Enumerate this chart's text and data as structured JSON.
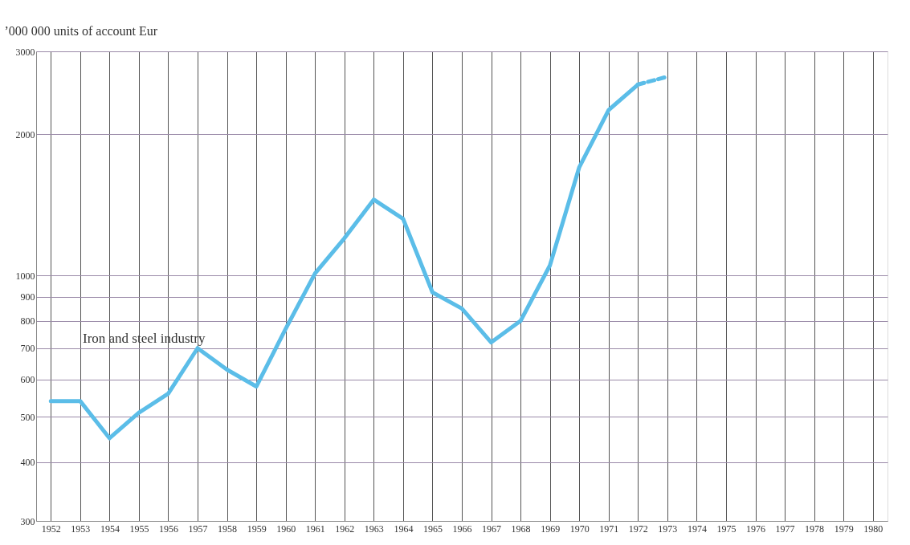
{
  "chart_data": {
    "type": "line",
    "ylabel": "’000 000 units of account Eur",
    "log": "y",
    "categories": [
      "1952",
      "1953",
      "1954",
      "1955",
      "1956",
      "1957",
      "1958",
      "1959",
      "1960",
      "1961",
      "1962",
      "1963",
      "1964",
      "1965",
      "1966",
      "1967",
      "1968",
      "1969",
      "1970",
      "1971",
      "1972",
      "1973",
      "1974",
      "1975",
      "1976",
      "1977",
      "1978",
      "1979",
      "1980"
    ],
    "series": [
      {
        "color": "#5bbde8",
        "line_style": "solid",
        "values": [
          540,
          540,
          450,
          510,
          560,
          700,
          630,
          580,
          770,
          1010,
          1200,
          1450,
          1320,
          920,
          850,
          720,
          800,
          1050,
          1700,
          2250,
          2550,
          null,
          null,
          null,
          null,
          null,
          null,
          null,
          null
        ]
      },
      {
        "color": "#5bbde8",
        "line_style": "dashed",
        "values": [
          null,
          null,
          null,
          null,
          null,
          null,
          null,
          null,
          null,
          null,
          null,
          null,
          null,
          null,
          null,
          null,
          null,
          null,
          null,
          null,
          2550,
          2650,
          null,
          null,
          null,
          null,
          null,
          null,
          null
        ]
      }
    ],
    "ylim": [
      300,
      3000
    ],
    "yticks": [
      300,
      400,
      500,
      600,
      700,
      800,
      900,
      1000,
      2000,
      3000
    ],
    "grid": true,
    "annotations": [
      "Iron and steel industry"
    ]
  }
}
